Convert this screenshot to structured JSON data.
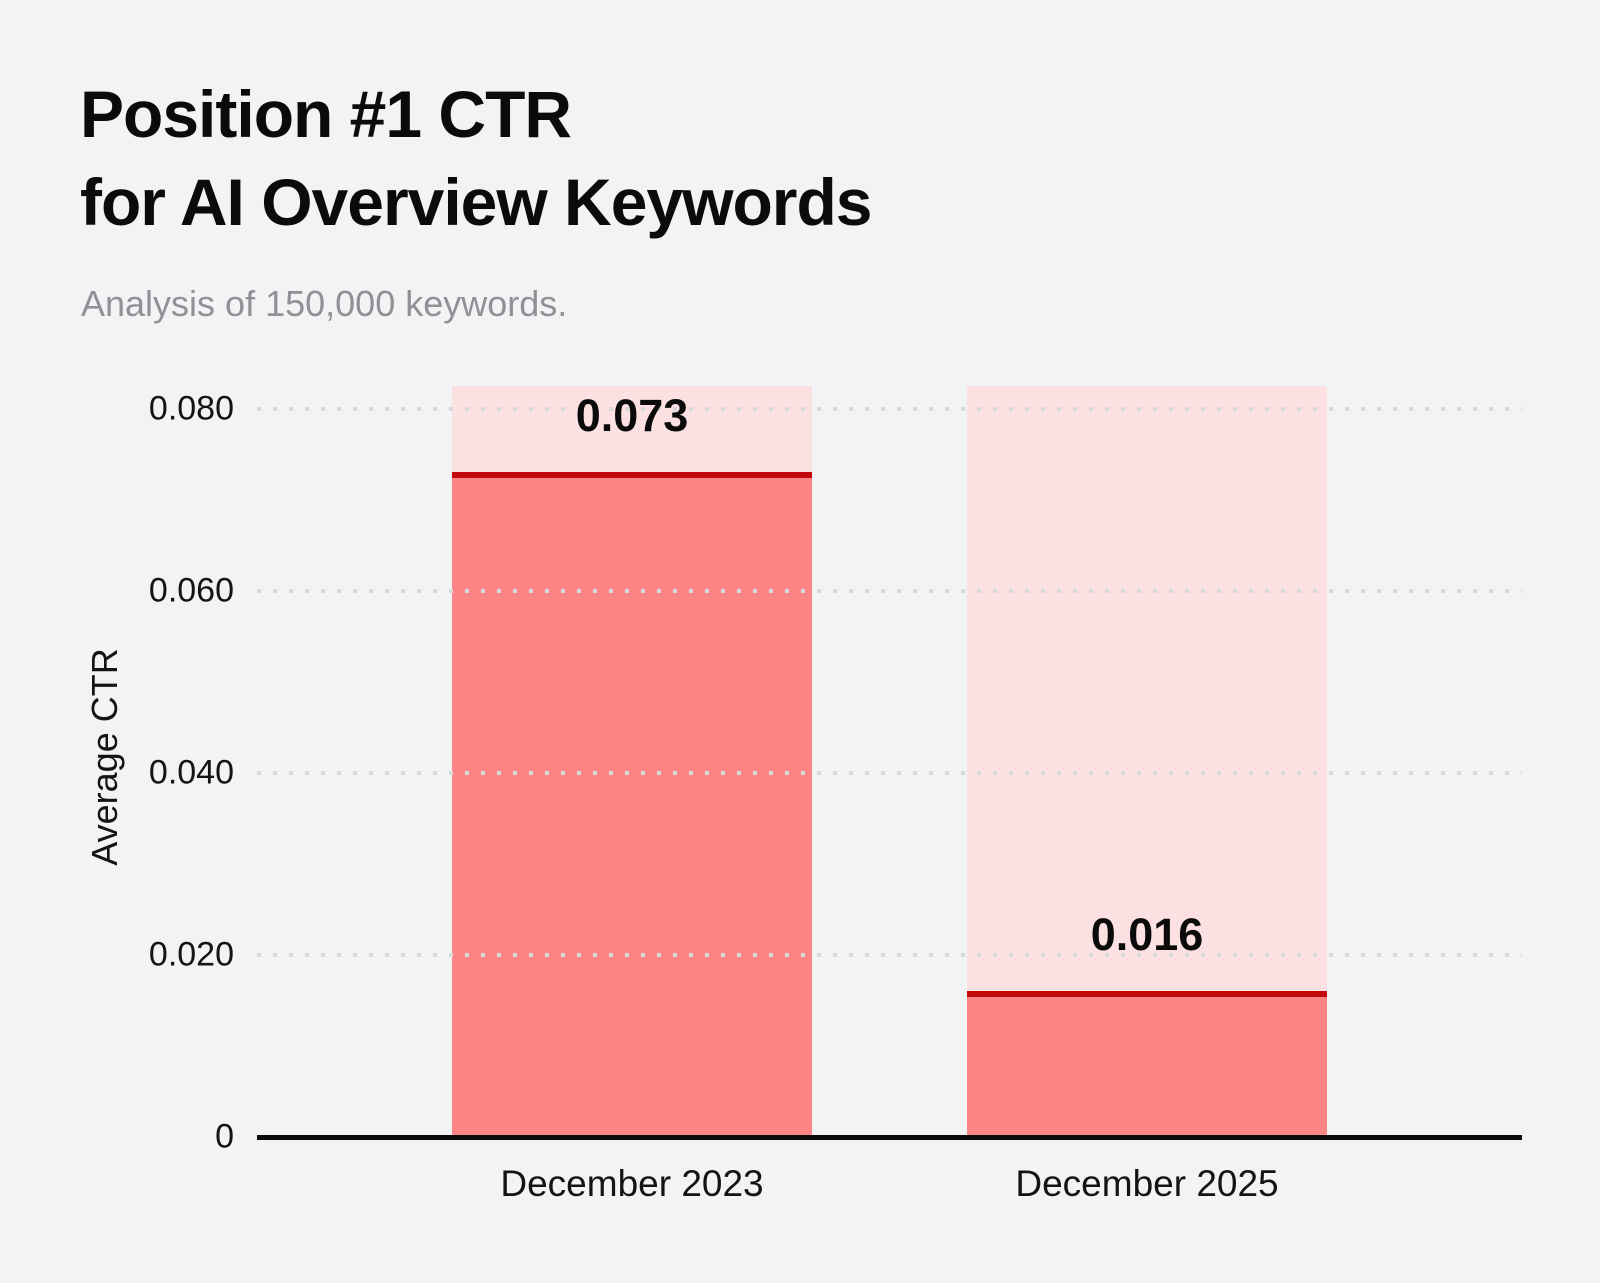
{
  "page": {
    "background": "#f2f3f5",
    "title_line1": "Position #1 CTR",
    "title_line2": "for AI Overview Keywords",
    "subtitle": "Analysis of 150,000 keywords."
  },
  "chart_data": {
    "type": "bar",
    "title": "Position #1 CTR for AI Overview Keywords",
    "subtitle": "Analysis of 150,000 keywords.",
    "categories": [
      "December 2023",
      "December 2025"
    ],
    "values": [
      0.073,
      0.016
    ],
    "value_labels": [
      "0.073",
      "0.016"
    ],
    "xlabel": "",
    "ylabel": "Average CTR",
    "ylim": [
      0,
      0.0825
    ],
    "yticks": [
      0,
      0.02,
      0.04,
      0.06,
      0.08
    ],
    "ytick_labels": [
      "0",
      "0.020",
      "0.040",
      "0.060",
      "0.080"
    ],
    "grid": "horizontal-dotted",
    "legend_position": "none",
    "colors": {
      "background": "#f2f3f5",
      "bar_fill": "#fd8484",
      "bar_track": "#fde0e1",
      "value_line": "#c20a0c",
      "grid_dot": "#d8d9db",
      "axis_line": "#0a0a0a",
      "title_text": "#0b0b0c",
      "subtitle_text": "#8f9194",
      "tick_text": "#141414",
      "value_text": "#0b0b0c"
    }
  }
}
